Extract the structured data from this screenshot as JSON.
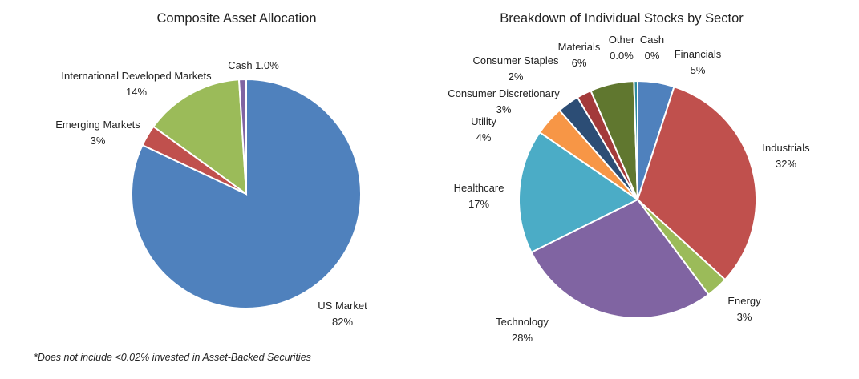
{
  "chart_data": [
    {
      "type": "pie",
      "title": "Composite Asset Allocation",
      "slices": [
        {
          "name": "US Market",
          "value": 82,
          "value_label": "82%",
          "color": "#4f81bd"
        },
        {
          "name": "Emerging Markets",
          "value": 3,
          "value_label": "3%",
          "color": "#c0504d"
        },
        {
          "name": "International Developed Markets",
          "value": 14,
          "value_label": "14%",
          "color": "#9bbb59"
        },
        {
          "name": "Cash",
          "value": 1.0,
          "value_label": "1.0%",
          "color": "#8064a2"
        }
      ]
    },
    {
      "type": "pie",
      "title": "Breakdown of Individual Stocks by Sector",
      "slices": [
        {
          "name": "Financials",
          "value": 5,
          "value_label": "5%",
          "color": "#4f81bd"
        },
        {
          "name": "Industrials",
          "value": 32,
          "value_label": "32%",
          "color": "#c0504d"
        },
        {
          "name": "Energy",
          "value": 3,
          "value_label": "3%",
          "color": "#9bbb59"
        },
        {
          "name": "Technology",
          "value": 28,
          "value_label": "28%",
          "color": "#8064a2"
        },
        {
          "name": "Healthcare",
          "value": 17,
          "value_label": "17%",
          "color": "#4bacc6"
        },
        {
          "name": "Utility",
          "value": 4,
          "value_label": "4%",
          "color": "#f79646"
        },
        {
          "name": "Consumer Discretionary",
          "value": 3,
          "value_label": "3%",
          "color": "#2c4d75"
        },
        {
          "name": "Consumer Staples",
          "value": 2,
          "value_label": "2%",
          "color": "#a33a3a"
        },
        {
          "name": "Materials",
          "value": 6,
          "value_label": "6%",
          "color": "#60772f"
        },
        {
          "name": "Other",
          "value": 0.0,
          "value_label": "0.0%",
          "color": "#4e3f66"
        },
        {
          "name": "Cash",
          "value": 0.5,
          "value_label": "0%",
          "color": "#2e8b9e"
        }
      ]
    }
  ],
  "footnote": "*Does not include <0.02% invested in Asset-Backed Securities"
}
